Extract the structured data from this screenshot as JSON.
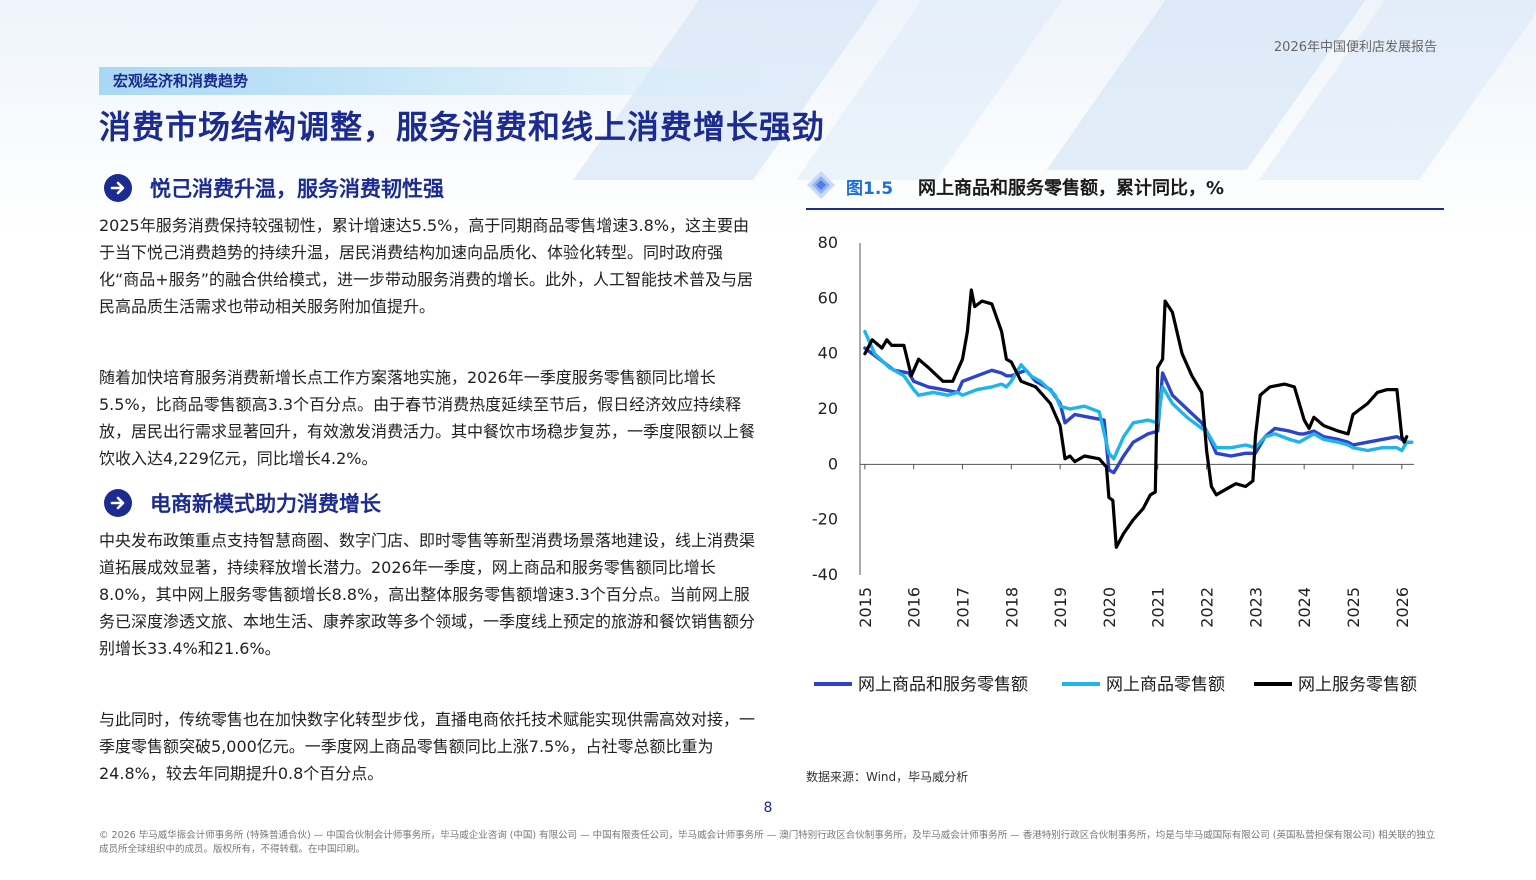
{
  "header": {
    "report_title": "2026年中国便利店发展报告",
    "section_tag": "宏观经济和消费趋势",
    "page_title": "消费市场结构调整，服务消费和线上消费增长强劲"
  },
  "left": {
    "sub1": "悦己消费升温，服务消费韧性强",
    "p1": "2025年服务消费保持较强韧性，累计增速达5.5%，高于同期商品零售增速3.8%，这主要由于当下悦己消费趋势的持续升温，居民消费结构加速向品质化、体验化转型。同时政府强化“商品+服务”的融合供给模式，进一步带动服务消费的增长。此外，人工智能技术普及与居民高品质生活需求也带动相关服务附加值提升。",
    "p2": "随着加快培育服务消费新增长点工作方案落地实施，2026年一季度服务零售额同比增长5.5%，比商品零售额高3.3个百分点。由于春节消费热度延续至节后，假日经济效应持续释放，居民出行需求显著回升，有效激发消费活力。其中餐饮市场稳步复苏，一季度限额以上餐饮收入达4,229亿元，同比增长4.2%。",
    "sub2": "电商新模式助力消费增长",
    "p3": "中央发布政策重点支持智慧商圈、数字门店、即时零售等新型消费场景落地建设，线上消费渠道拓展成效显著，持续释放增长潜力。2026年一季度，网上商品和服务零售额同比增长8.0%，其中网上服务零售额增长8.8%，高出整体服务零售额增速3.3个百分点。当前网上服务已深度渗透文旅、本地生活、康养家政等多个领域，一季度线上预定的旅游和餐饮销售额分别增长33.4%和21.6%。",
    "p4": "与此同时，传统零售也在加快数字化转型步伐，直播电商依托技术赋能实现供需高效对接，一季度零售额突破5,000亿元。一季度网上商品零售额同比上涨7.5%，占社零总额比重为24.8%，较去年同期提升0.8个百分点。"
  },
  "figure": {
    "label": "图1.5",
    "title": "网上商品和服务零售额，累计同比，%",
    "source": "数据来源：Wind，毕马威分析"
  },
  "chart_data": {
    "type": "line",
    "title": "网上商品和服务零售额，累计同比，%",
    "x_ticks": [
      "2015",
      "2016",
      "2017",
      "2018",
      "2019",
      "2020",
      "2021",
      "2022",
      "2023",
      "2024",
      "2025",
      "2026"
    ],
    "ylim": [
      -40,
      80
    ],
    "y_ticks": [
      "80",
      "60",
      "40",
      "20",
      "0",
      "-20",
      "-40"
    ],
    "grid": false,
    "legend_position": "bottom",
    "series": [
      {
        "name": "网上商品和服务零售额",
        "color": "#2b44c8",
        "points": [
          [
            2015.0,
            42
          ],
          [
            2015.3,
            38
          ],
          [
            2015.6,
            34
          ],
          [
            2015.9,
            33
          ],
          [
            2016.0,
            30
          ],
          [
            2016.3,
            28
          ],
          [
            2016.6,
            27
          ],
          [
            2016.9,
            26
          ],
          [
            2017.0,
            30
          ],
          [
            2017.3,
            32
          ],
          [
            2017.6,
            34
          ],
          [
            2017.8,
            33
          ],
          [
            2017.9,
            32
          ],
          [
            2018.0,
            32
          ],
          [
            2018.3,
            34
          ],
          [
            2018.5,
            30
          ],
          [
            2018.8,
            27
          ],
          [
            2019.0,
            22
          ],
          [
            2019.1,
            15
          ],
          [
            2019.3,
            18
          ],
          [
            2019.6,
            17
          ],
          [
            2019.9,
            16
          ],
          [
            2020.0,
            -2
          ],
          [
            2020.1,
            -3
          ],
          [
            2020.3,
            3
          ],
          [
            2020.5,
            8
          ],
          [
            2020.8,
            11
          ],
          [
            2021.0,
            12
          ],
          [
            2021.1,
            33
          ],
          [
            2021.3,
            25
          ],
          [
            2021.6,
            20
          ],
          [
            2021.9,
            15
          ],
          [
            2022.0,
            12
          ],
          [
            2022.2,
            4
          ],
          [
            2022.5,
            3
          ],
          [
            2022.8,
            4
          ],
          [
            2023.0,
            4
          ],
          [
            2023.2,
            10
          ],
          [
            2023.4,
            13
          ],
          [
            2023.7,
            12
          ],
          [
            2023.9,
            11
          ],
          [
            2024.0,
            11
          ],
          [
            2024.2,
            12
          ],
          [
            2024.4,
            10
          ],
          [
            2024.7,
            9
          ],
          [
            2024.9,
            8
          ],
          [
            2025.0,
            7
          ],
          [
            2025.3,
            8
          ],
          [
            2025.6,
            9
          ],
          [
            2025.9,
            10
          ],
          [
            2026.0,
            9
          ],
          [
            2026.1,
            8
          ],
          [
            2026.2,
            8
          ]
        ]
      },
      {
        "name": "网上商品零售额",
        "color": "#1fb5ec",
        "points": [
          [
            2015.0,
            48
          ],
          [
            2015.2,
            40
          ],
          [
            2015.5,
            35
          ],
          [
            2015.8,
            32
          ],
          [
            2016.0,
            27
          ],
          [
            2016.1,
            25
          ],
          [
            2016.4,
            26
          ],
          [
            2016.7,
            25
          ],
          [
            2016.9,
            26
          ],
          [
            2017.0,
            25
          ],
          [
            2017.3,
            27
          ],
          [
            2017.6,
            28
          ],
          [
            2017.8,
            29
          ],
          [
            2017.9,
            28
          ],
          [
            2018.0,
            30
          ],
          [
            2018.2,
            36
          ],
          [
            2018.4,
            32
          ],
          [
            2018.6,
            30
          ],
          [
            2018.9,
            25
          ],
          [
            2019.0,
            21
          ],
          [
            2019.2,
            20
          ],
          [
            2019.5,
            21
          ],
          [
            2019.8,
            19
          ],
          [
            2020.0,
            4
          ],
          [
            2020.1,
            2
          ],
          [
            2020.3,
            10
          ],
          [
            2020.5,
            15
          ],
          [
            2020.8,
            16
          ],
          [
            2021.0,
            15
          ],
          [
            2021.1,
            28
          ],
          [
            2021.3,
            22
          ],
          [
            2021.6,
            17
          ],
          [
            2021.9,
            13
          ],
          [
            2022.0,
            12
          ],
          [
            2022.2,
            6
          ],
          [
            2022.5,
            6
          ],
          [
            2022.8,
            7
          ],
          [
            2023.0,
            6
          ],
          [
            2023.2,
            10
          ],
          [
            2023.4,
            11
          ],
          [
            2023.7,
            9
          ],
          [
            2023.9,
            8
          ],
          [
            2024.0,
            9
          ],
          [
            2024.2,
            11
          ],
          [
            2024.4,
            9
          ],
          [
            2024.7,
            8
          ],
          [
            2024.9,
            7
          ],
          [
            2025.0,
            6
          ],
          [
            2025.3,
            5
          ],
          [
            2025.6,
            6
          ],
          [
            2025.9,
            6
          ],
          [
            2026.0,
            5
          ],
          [
            2026.1,
            8
          ],
          [
            2026.2,
            8
          ]
        ]
      },
      {
        "name": "网上服务零售额",
        "color": "#000000",
        "points": [
          [
            2015.0,
            40
          ],
          [
            2015.15,
            45
          ],
          [
            2015.35,
            42
          ],
          [
            2015.45,
            45
          ],
          [
            2015.55,
            43
          ],
          [
            2015.8,
            43
          ],
          [
            2015.95,
            32
          ],
          [
            2016.1,
            38
          ],
          [
            2016.3,
            35
          ],
          [
            2016.6,
            30
          ],
          [
            2016.8,
            30
          ],
          [
            2017.0,
            38
          ],
          [
            2017.1,
            48
          ],
          [
            2017.18,
            63
          ],
          [
            2017.25,
            57
          ],
          [
            2017.4,
            59
          ],
          [
            2017.6,
            58
          ],
          [
            2017.8,
            48
          ],
          [
            2017.9,
            38
          ],
          [
            2018.0,
            37
          ],
          [
            2018.2,
            30
          ],
          [
            2018.5,
            28
          ],
          [
            2018.8,
            22
          ],
          [
            2019.0,
            14
          ],
          [
            2019.1,
            2
          ],
          [
            2019.2,
            3
          ],
          [
            2019.3,
            1
          ],
          [
            2019.5,
            3
          ],
          [
            2019.8,
            2
          ],
          [
            2019.95,
            -1
          ],
          [
            2020.0,
            -12
          ],
          [
            2020.08,
            -13
          ],
          [
            2020.15,
            -30
          ],
          [
            2020.3,
            -25
          ],
          [
            2020.5,
            -20
          ],
          [
            2020.7,
            -16
          ],
          [
            2020.85,
            -11
          ],
          [
            2020.95,
            -10
          ],
          [
            2021.0,
            35
          ],
          [
            2021.1,
            38
          ],
          [
            2021.15,
            59
          ],
          [
            2021.3,
            55
          ],
          [
            2021.5,
            40
          ],
          [
            2021.7,
            32
          ],
          [
            2021.9,
            26
          ],
          [
            2022.0,
            5
          ],
          [
            2022.1,
            -8
          ],
          [
            2022.2,
            -11
          ],
          [
            2022.4,
            -9
          ],
          [
            2022.6,
            -7
          ],
          [
            2022.8,
            -8
          ],
          [
            2022.95,
            -6
          ],
          [
            2023.0,
            10
          ],
          [
            2023.1,
            25
          ],
          [
            2023.3,
            28
          ],
          [
            2023.6,
            29
          ],
          [
            2023.8,
            28
          ],
          [
            2024.0,
            16
          ],
          [
            2024.1,
            13
          ],
          [
            2024.2,
            17
          ],
          [
            2024.4,
            14
          ],
          [
            2024.7,
            12
          ],
          [
            2024.9,
            11
          ],
          [
            2025.0,
            18
          ],
          [
            2025.3,
            22
          ],
          [
            2025.5,
            26
          ],
          [
            2025.7,
            27
          ],
          [
            2025.9,
            27
          ],
          [
            2026.0,
            10
          ],
          [
            2026.05,
            8
          ],
          [
            2026.1,
            10
          ]
        ]
      }
    ]
  },
  "page_number": "8",
  "footer": "© 2026 毕马威华振会计师事务所 (特殊普通合伙) — 中国合伙制会计师事务所，毕马威企业咨询 (中国) 有限公司 — 中国有限责任公司，毕马威会计师事务所 — 澳门特别行政区合伙制事务所，及毕马威会计师事务所 — 香港特别行政区合伙制事务所，均是与毕马威国际有限公司 (英国私营担保有限公司) 相关联的独立成员所全球组织中的成员。版权所有，不得转载。在中国印刷。"
}
